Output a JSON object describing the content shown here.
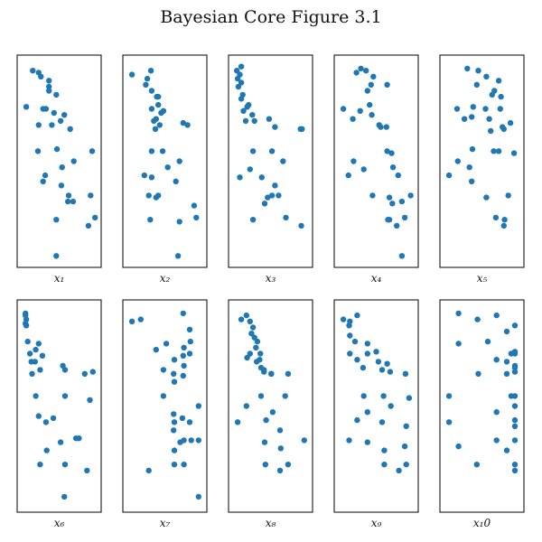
{
  "chart_data": {
    "title": "Bayesian Core Figure 3.1",
    "type": "scatter",
    "color": "#1f77b4",
    "grid": false,
    "y_shared": true,
    "ylim": [
      0,
      1
    ],
    "panels": [
      {
        "xlabel": "x1",
        "sub": "1",
        "xlim": [
          0,
          1
        ],
        "x": [
          0.14,
          0.22,
          0.25,
          0.36,
          0.36,
          0.36,
          0.05,
          0.28,
          0.32,
          0.46,
          0.52,
          0.43,
          0.57,
          0.4,
          0.22,
          0.65,
          0.95,
          0.21,
          0.47,
          0.7,
          0.54,
          0.31,
          0.28,
          0.53,
          0.63,
          0.62,
          0.93,
          0.69,
          0.46,
          0.99,
          0.9,
          0.46
        ],
        "y": [
          0.95,
          0.94,
          0.92,
          0.9,
          0.87,
          0.85,
          0.77,
          0.76,
          0.76,
          0.83,
          0.7,
          0.74,
          0.73,
          0.68,
          0.68,
          0.66,
          0.55,
          0.55,
          0.56,
          0.5,
          0.47,
          0.43,
          0.4,
          0.38,
          0.33,
          0.3,
          0.33,
          0.3,
          0.21,
          0.22,
          0.18,
          0.03
        ]
      },
      {
        "xlabel": "x2",
        "sub": "2",
        "xlim": [
          0,
          1
        ],
        "x": [
          0.05,
          0.31,
          0.26,
          0.24,
          0.32,
          0.39,
          0.41,
          0.41,
          0.32,
          0.48,
          0.45,
          0.38,
          0.35,
          0.43,
          0.37,
          0.75,
          0.81,
          0.32,
          0.47,
          0.7,
          0.54,
          0.22,
          0.32,
          0.65,
          0.28,
          0.41,
          0.38,
          0.9,
          0.3,
          0.7,
          0.93,
          0.68
        ],
        "y": [
          0.93,
          0.95,
          0.91,
          0.88,
          0.85,
          0.82,
          0.82,
          0.78,
          0.76,
          0.75,
          0.74,
          0.71,
          0.7,
          0.68,
          0.66,
          0.69,
          0.68,
          0.55,
          0.55,
          0.5,
          0.47,
          0.43,
          0.42,
          0.4,
          0.33,
          0.33,
          0.32,
          0.28,
          0.21,
          0.2,
          0.22,
          0.03
        ]
      },
      {
        "xlabel": "x3",
        "sub": "3",
        "xlim": [
          0,
          1
        ],
        "x": [
          0.04,
          0.1,
          0.08,
          0.05,
          0.1,
          0.06,
          0.12,
          0.1,
          0.2,
          0.18,
          0.13,
          0.25,
          0.16,
          0.28,
          0.48,
          0.56,
          0.91,
          0.93,
          0.26,
          0.52,
          0.67,
          0.22,
          0.38,
          0.08,
          0.56,
          0.61,
          0.52,
          0.46,
          0.42,
          0.26,
          0.71,
          0.92
        ],
        "y": [
          0.95,
          0.97,
          0.93,
          0.91,
          0.89,
          0.87,
          0.83,
          0.81,
          0.78,
          0.77,
          0.75,
          0.73,
          0.7,
          0.7,
          0.71,
          0.67,
          0.66,
          0.66,
          0.55,
          0.55,
          0.5,
          0.46,
          0.42,
          0.42,
          0.38,
          0.33,
          0.33,
          0.32,
          0.29,
          0.21,
          0.22,
          0.18
        ]
      },
      {
        "xlabel": "x4",
        "sub": "4",
        "xlim": [
          0,
          1
        ],
        "x": [
          0.29,
          0.23,
          0.36,
          0.46,
          0.43,
          0.38,
          0.65,
          0.05,
          0.28,
          0.41,
          0.44,
          0.54,
          0.56,
          0.64,
          0.18,
          0.65,
          0.71,
          0.19,
          0.73,
          0.33,
          0.12,
          0.8,
          0.45,
          0.68,
          0.85,
          0.72,
          0.89,
          0.97,
          0.68,
          0.66,
          0.78,
          0.85
        ],
        "y": [
          0.96,
          0.94,
          0.95,
          0.92,
          0.88,
          0.85,
          0.88,
          0.76,
          0.75,
          0.78,
          0.73,
          0.68,
          0.67,
          0.67,
          0.71,
          0.55,
          0.54,
          0.5,
          0.47,
          0.46,
          0.43,
          0.43,
          0.33,
          0.32,
          0.3,
          0.29,
          0.22,
          0.33,
          0.21,
          0.21,
          0.18,
          0.03
        ]
      },
      {
        "xlabel": "x5",
        "sub": "5",
        "xlim": [
          0,
          1
        ],
        "x": [
          0.3,
          0.45,
          0.56,
          0.43,
          0.73,
          0.67,
          0.64,
          0.76,
          0.55,
          0.75,
          0.38,
          0.16,
          0.36,
          0.6,
          0.26,
          0.89,
          0.78,
          0.8,
          0.62,
          0.73,
          0.94,
          0.37,
          0.66,
          0.17,
          0.33,
          0.05,
          0.36,
          0.56,
          0.86,
          0.81,
          0.69,
          0.8
        ],
        "y": [
          0.96,
          0.95,
          0.92,
          0.88,
          0.9,
          0.85,
          0.83,
          0.82,
          0.76,
          0.76,
          0.77,
          0.76,
          0.72,
          0.71,
          0.71,
          0.69,
          0.67,
          0.66,
          0.65,
          0.55,
          0.54,
          0.56,
          0.55,
          0.5,
          0.47,
          0.43,
          0.4,
          0.32,
          0.33,
          0.21,
          0.22,
          0.18
        ]
      },
      {
        "xlabel": "x6",
        "sub": "6",
        "xlim": [
          0,
          1
        ],
        "x": [
          0.04,
          0.04,
          0.05,
          0.04,
          0.05,
          0.07,
          0.18,
          0.22,
          0.27,
          0.1,
          0.12,
          0.17,
          0.24,
          0.55,
          0.13,
          0.58,
          0.96,
          0.85,
          0.18,
          0.58,
          0.92,
          0.22,
          0.42,
          0.32,
          0.73,
          0.77,
          0.52,
          0.33,
          0.58,
          0.24,
          0.88,
          0.57
        ],
        "y": [
          0.96,
          0.95,
          0.93,
          0.91,
          0.9,
          0.82,
          0.78,
          0.81,
          0.75,
          0.76,
          0.72,
          0.72,
          0.68,
          0.7,
          0.66,
          0.68,
          0.67,
          0.66,
          0.55,
          0.55,
          0.53,
          0.45,
          0.44,
          0.42,
          0.34,
          0.34,
          0.32,
          0.28,
          0.21,
          0.21,
          0.18,
          0.05
        ]
      },
      {
        "xlabel": "x7",
        "sub": "7",
        "xlim": [
          0,
          1
        ],
        "x": [
          0.05,
          0.75,
          0.17,
          0.84,
          0.85,
          0.76,
          0.52,
          0.75,
          0.38,
          0.84,
          0.63,
          0.76,
          0.48,
          0.62,
          0.63,
          0.75,
          0.48,
          0.96,
          0.74,
          0.84,
          0.62,
          0.63,
          0.76,
          0.86,
          0.62,
          0.71,
          0.96,
          0.63,
          0.63,
          0.76,
          0.28,
          0.96
        ],
        "y": [
          0.92,
          0.96,
          0.93,
          0.88,
          0.82,
          0.79,
          0.81,
          0.75,
          0.78,
          0.76,
          0.73,
          0.7,
          0.68,
          0.66,
          0.62,
          0.65,
          0.55,
          0.5,
          0.44,
          0.42,
          0.46,
          0.42,
          0.33,
          0.33,
          0.38,
          0.32,
          0.33,
          0.28,
          0.21,
          0.21,
          0.18,
          0.05
        ]
      },
      {
        "xlabel": "x8",
        "sub": "8",
        "xlim": [
          0,
          1
        ],
        "x": [
          0.1,
          0.17,
          0.22,
          0.26,
          0.24,
          0.28,
          0.32,
          0.3,
          0.36,
          0.22,
          0.35,
          0.31,
          0.18,
          0.41,
          0.51,
          0.37,
          0.41,
          0.74,
          0.51,
          0.7,
          0.37,
          0.17,
          0.53,
          0.44,
          0.05,
          0.63,
          0.96,
          0.42,
          0.64,
          0.43,
          0.74,
          0.63
        ],
        "y": [
          0.93,
          0.95,
          0.92,
          0.89,
          0.86,
          0.84,
          0.82,
          0.79,
          0.76,
          0.76,
          0.73,
          0.72,
          0.74,
          0.68,
          0.66,
          0.69,
          0.67,
          0.66,
          0.66,
          0.55,
          0.55,
          0.5,
          0.47,
          0.43,
          0.42,
          0.38,
          0.33,
          0.32,
          0.29,
          0.21,
          0.21,
          0.18
        ]
      },
      {
        "xlabel": "x9",
        "sub": "9",
        "xlim": [
          0,
          1
        ],
        "x": [
          0.05,
          0.14,
          0.24,
          0.13,
          0.14,
          0.21,
          0.38,
          0.38,
          0.5,
          0.14,
          0.24,
          0.53,
          0.32,
          0.65,
          0.58,
          0.69,
          0.9,
          0.33,
          0.6,
          0.95,
          0.7,
          0.38,
          0.24,
          0.58,
          0.91,
          0.13,
          0.38,
          0.89,
          0.61,
          0.61,
          0.91,
          0.81
        ],
        "y": [
          0.93,
          0.92,
          0.95,
          0.9,
          0.85,
          0.82,
          0.81,
          0.76,
          0.77,
          0.76,
          0.73,
          0.72,
          0.69,
          0.71,
          0.68,
          0.67,
          0.66,
          0.55,
          0.55,
          0.54,
          0.5,
          0.47,
          0.43,
          0.42,
          0.4,
          0.33,
          0.32,
          0.3,
          0.28,
          0.21,
          0.21,
          0.18
        ]
      },
      {
        "xlabel": "x10",
        "display": "x₁0",
        "sub": "10",
        "xlim": [
          0,
          1
        ],
        "x": [
          0.18,
          0.7,
          0.44,
          0.95,
          0.84,
          0.58,
          0.18,
          0.95,
          0.95,
          0.9,
          0.7,
          0.84,
          0.95,
          0.45,
          0.95,
          0.95,
          0.84,
          0.95,
          0.9,
          0.05,
          0.95,
          0.7,
          0.95,
          0.05,
          0.95,
          0.7,
          0.95,
          0.18,
          0.84,
          0.43,
          0.95,
          0.95
        ],
        "y": [
          0.96,
          0.95,
          0.93,
          0.9,
          0.87,
          0.82,
          0.81,
          0.76,
          0.77,
          0.76,
          0.73,
          0.72,
          0.7,
          0.66,
          0.69,
          0.67,
          0.66,
          0.55,
          0.55,
          0.55,
          0.5,
          0.47,
          0.43,
          0.42,
          0.4,
          0.33,
          0.33,
          0.3,
          0.28,
          0.21,
          0.21,
          0.18
        ]
      }
    ]
  }
}
